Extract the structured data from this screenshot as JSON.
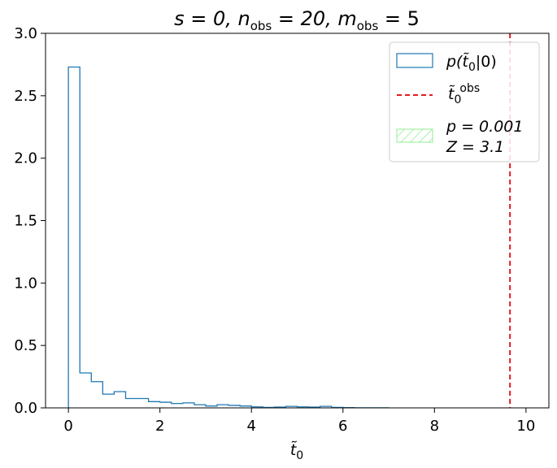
{
  "chart_data": {
    "type": "histogram",
    "title_parts": [
      "s = 0, n",
      "obs",
      " = 20, m",
      "obs",
      " = 5"
    ],
    "xlabel_parts": [
      "t̃",
      "0"
    ],
    "ylabel": "",
    "xlim": [
      -0.5,
      10.5
    ],
    "ylim": [
      0,
      3.0
    ],
    "xticks": [
      0,
      2,
      4,
      6,
      8,
      10
    ],
    "yticks": [
      0.0,
      0.5,
      1.0,
      1.5,
      2.0,
      2.5,
      3.0
    ],
    "xtick_labels": [
      "0",
      "2",
      "4",
      "6",
      "8",
      "10"
    ],
    "ytick_labels": [
      "0.0",
      "0.5",
      "1.0",
      "1.5",
      "2.0",
      "2.5",
      "3.0"
    ],
    "bin_width": 0.25,
    "bin_start": 0,
    "values": [
      2.73,
      0.28,
      0.21,
      0.11,
      0.13,
      0.075,
      0.075,
      0.05,
      0.045,
      0.035,
      0.04,
      0.025,
      0.015,
      0.025,
      0.02,
      0.015,
      0.008,
      0.004,
      0.006,
      0.012,
      0.008,
      0.006,
      0.012,
      0.004,
      0.002,
      0.001,
      0.001,
      0.001,
      0.0,
      0.0,
      0.0,
      0.0,
      0.0,
      0.0,
      0.0,
      0.0,
      0.0,
      0.0,
      0.0,
      0.0
    ],
    "observed_t": 9.65,
    "colors": {
      "histogram": "#1f77b4",
      "observed_line": "#e41a1c",
      "hatch": "#90ee90"
    },
    "legend": {
      "location": "upper right",
      "entries": [
        {
          "kind": "hist",
          "label_parts": [
            "p(",
            "t̃",
            "0",
            "|0)"
          ]
        },
        {
          "kind": "vline",
          "label_parts": [
            "t̃",
            "0",
            "obs"
          ]
        },
        {
          "kind": "hatch",
          "label_line1": "p = 0.001",
          "label_line2": "Z = 3.1"
        }
      ]
    }
  }
}
